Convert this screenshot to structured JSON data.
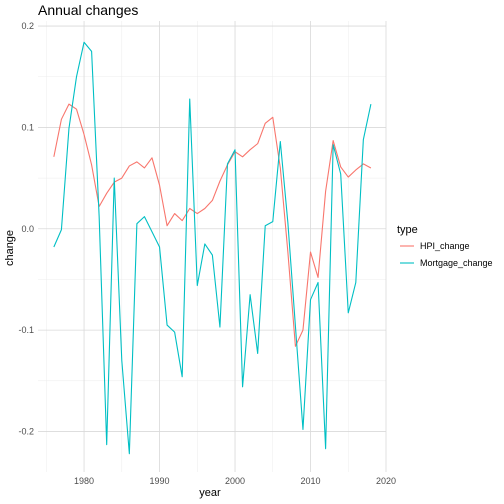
{
  "chart_data": {
    "type": "line",
    "title": "Annual changes",
    "xlabel": "year",
    "ylabel": "change",
    "xlim": [
      1973.9,
      2020
    ],
    "ylim": [
      -0.24,
      0.205
    ],
    "x_ticks": [
      1980,
      1990,
      2000,
      2010,
      2020
    ],
    "x_tick_labels": [
      "1980",
      "1990",
      "2000",
      "2010",
      "2020"
    ],
    "y_ticks": [
      -0.2,
      -0.1,
      0.0,
      0.1,
      0.2
    ],
    "y_tick_labels": [
      "-0.2",
      "-0.1",
      "0.0",
      "0.1",
      "0.2"
    ],
    "grid": true,
    "legend": {
      "title": "type",
      "position": "right"
    },
    "x": [
      1976,
      1977,
      1978,
      1979,
      1980,
      1981,
      1982,
      1983,
      1984,
      1985,
      1986,
      1987,
      1988,
      1989,
      1990,
      1991,
      1992,
      1993,
      1994,
      1995,
      1996,
      1997,
      1998,
      1999,
      2000,
      2001,
      2002,
      2003,
      2004,
      2005,
      2006,
      2007,
      2008,
      2009,
      2010,
      2011,
      2012,
      2013,
      2014,
      2015,
      2016,
      2017,
      2018
    ],
    "series": [
      {
        "name": "HPI_change",
        "color": "#F8766D",
        "values": [
          0.071,
          0.108,
          0.123,
          0.118,
          0.093,
          0.063,
          0.022,
          0.035,
          0.046,
          0.05,
          0.062,
          0.066,
          0.06,
          0.07,
          0.043,
          0.003,
          0.015,
          0.008,
          0.02,
          0.015,
          0.02,
          0.028,
          0.047,
          0.063,
          0.076,
          0.071,
          0.078,
          0.084,
          0.104,
          0.11,
          0.06,
          -0.023,
          -0.116,
          -0.1,
          -0.023,
          -0.048,
          0.037,
          0.087,
          0.061,
          0.051,
          0.058,
          0.064,
          0.06
        ]
      },
      {
        "name": "Mortgage_change",
        "color": "#00BFC4",
        "values": [
          -0.018,
          -0.001,
          0.099,
          0.15,
          0.184,
          0.175,
          0.012,
          -0.213,
          0.05,
          -0.13,
          -0.222,
          0.005,
          0.012,
          -0.003,
          -0.018,
          -0.095,
          -0.102,
          -0.146,
          0.128,
          -0.056,
          -0.015,
          -0.026,
          -0.097,
          0.064,
          0.078,
          -0.156,
          -0.065,
          -0.123,
          0.003,
          0.007,
          0.086,
          0.006,
          -0.096,
          -0.198,
          -0.07,
          -0.053,
          -0.217,
          0.083,
          0.054,
          -0.083,
          -0.053,
          0.088,
          0.123
        ]
      }
    ]
  }
}
